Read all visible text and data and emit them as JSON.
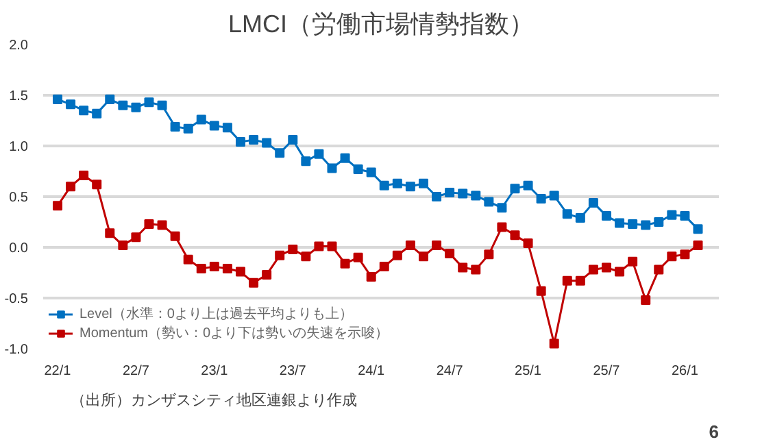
{
  "chart_data": {
    "type": "line",
    "title": "LMCI（労働市場情勢指数）",
    "categories": [
      "22/1",
      null,
      null,
      null,
      null,
      null,
      "22/7",
      null,
      null,
      null,
      null,
      null,
      "23/1",
      null,
      null,
      null,
      null,
      null,
      "23/7",
      null,
      null,
      null,
      null,
      null,
      "24/1",
      null,
      null,
      null,
      null,
      null,
      "24/7",
      null,
      null,
      null,
      null,
      null,
      "25/1",
      null,
      null,
      null,
      null,
      null,
      "25/7",
      null,
      null,
      null,
      null,
      null,
      "26/1",
      null
    ],
    "series": [
      {
        "name": "Level（水準：0より上は過去平均よりも上）",
        "color": "#0070c0",
        "values": [
          1.46,
          1.41,
          1.35,
          1.32,
          1.46,
          1.4,
          1.38,
          1.43,
          1.4,
          1.19,
          1.17,
          1.26,
          1.2,
          1.18,
          1.04,
          1.06,
          1.03,
          0.93,
          1.06,
          0.85,
          0.92,
          0.78,
          0.88,
          0.77,
          0.74,
          0.61,
          0.63,
          0.6,
          0.63,
          0.5,
          0.54,
          0.53,
          0.51,
          0.45,
          0.39,
          0.58,
          0.61,
          0.48,
          0.51,
          0.33,
          0.29,
          0.44,
          0.31,
          0.24,
          0.23,
          0.22,
          0.25,
          0.32,
          0.31,
          0.18
        ]
      },
      {
        "name": "Momentum（勢い：0より下は勢いの失速を示唆）",
        "color": "#c00000",
        "values": [
          0.41,
          0.6,
          0.71,
          0.62,
          0.14,
          0.02,
          0.1,
          0.23,
          0.22,
          0.11,
          -0.12,
          -0.21,
          -0.19,
          -0.21,
          -0.24,
          -0.35,
          -0.27,
          -0.08,
          -0.02,
          -0.09,
          0.01,
          0.01,
          -0.16,
          -0.1,
          -0.29,
          -0.19,
          -0.08,
          0.02,
          -0.09,
          0.02,
          -0.06,
          -0.2,
          -0.22,
          -0.07,
          0.2,
          0.12,
          0.04,
          -0.43,
          -0.95,
          -0.33,
          -0.33,
          -0.22,
          -0.2,
          -0.24,
          -0.14,
          -0.52,
          -0.22,
          -0.09,
          -0.07,
          0.02
        ]
      }
    ],
    "ylim": [
      -1.0,
      2.0
    ],
    "yticks": [
      {
        "value": -1.0,
        "label": "-1.0"
      },
      {
        "value": -0.5,
        "label": "-0.5"
      },
      {
        "value": 0,
        "label": "0.0"
      },
      {
        "value": 0.5,
        "label": "0.5"
      },
      {
        "value": 1.0,
        "label": "1.0"
      },
      {
        "value": 1.5,
        "label": "1.5"
      },
      {
        "value": 2.0,
        "label": "2.0"
      }
    ],
    "grid": "y",
    "legend": "bottom left",
    "marker": "square",
    "line_style": "solid",
    "annotations": [
      "（出所）カンザスシティ地区連銀より作成",
      "6"
    ]
  }
}
